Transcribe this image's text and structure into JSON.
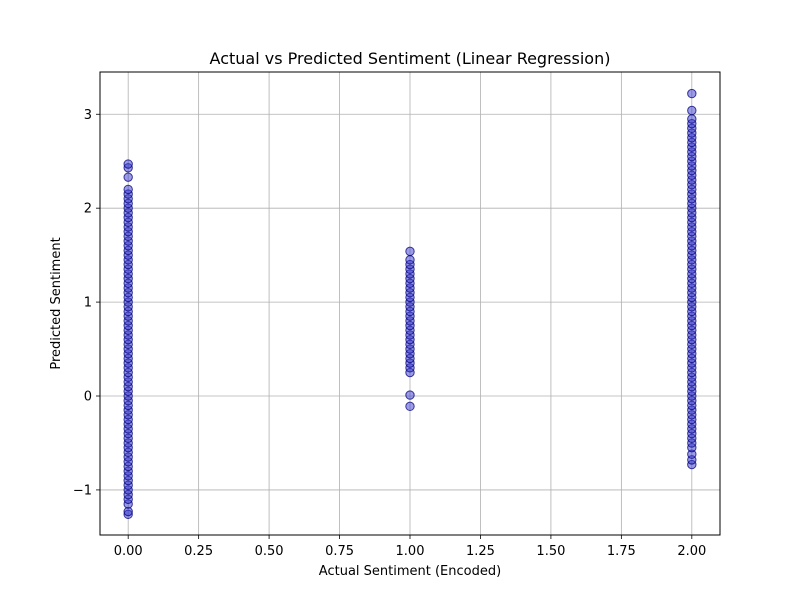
{
  "chart_data": {
    "type": "scatter",
    "title": "Actual vs Predicted Sentiment (Linear Regression)",
    "xlabel": "Actual Sentiment (Encoded)",
    "ylabel": "Predicted Sentiment",
    "xlim": [
      -0.1,
      2.1
    ],
    "ylim": [
      -1.48,
      3.45
    ],
    "xticks": [
      0.0,
      0.25,
      0.5,
      0.75,
      1.0,
      1.25,
      1.5,
      1.75,
      2.0
    ],
    "xtick_labels": [
      "0.00",
      "0.25",
      "0.50",
      "0.75",
      "1.00",
      "1.25",
      "1.50",
      "1.75",
      "2.00"
    ],
    "yticks": [
      -1,
      0,
      1,
      2,
      3
    ],
    "ytick_labels": [
      "−1",
      "0",
      "1",
      "2",
      "3"
    ],
    "grid": true,
    "marker_color": "#3a3ad0",
    "marker_edge_color": "#00007a",
    "marker_alpha": 0.5,
    "groups": [
      {
        "x": 0,
        "y_min": -1.26,
        "y_max": 2.47,
        "sample_y": [
          -1.26,
          -1.23,
          -1.15,
          -1.1,
          -1.05,
          -1.0,
          -0.95,
          -0.9,
          -0.85,
          -0.8,
          -0.75,
          -0.7,
          -0.65,
          -0.6,
          -0.55,
          -0.5,
          -0.45,
          -0.4,
          -0.35,
          -0.3,
          -0.25,
          -0.2,
          -0.15,
          -0.1,
          -0.05,
          0.0,
          0.05,
          0.1,
          0.15,
          0.2,
          0.25,
          0.3,
          0.35,
          0.4,
          0.45,
          0.5,
          0.55,
          0.6,
          0.65,
          0.7,
          0.75,
          0.8,
          0.85,
          0.9,
          0.95,
          1.0,
          1.05,
          1.1,
          1.15,
          1.2,
          1.25,
          1.3,
          1.35,
          1.4,
          1.45,
          1.5,
          1.55,
          1.6,
          1.65,
          1.7,
          1.75,
          1.8,
          1.85,
          1.9,
          1.95,
          2.0,
          2.05,
          2.1,
          2.15,
          2.2,
          2.33,
          2.43,
          2.47
        ]
      },
      {
        "x": 1,
        "y_min": -0.11,
        "y_max": 1.54,
        "sample_y": [
          -0.11,
          0.01,
          0.25,
          0.3,
          0.35,
          0.4,
          0.45,
          0.5,
          0.55,
          0.6,
          0.65,
          0.7,
          0.75,
          0.8,
          0.85,
          0.9,
          0.95,
          1.0,
          1.05,
          1.1,
          1.15,
          1.2,
          1.25,
          1.3,
          1.35,
          1.4,
          1.45,
          1.54
        ]
      },
      {
        "x": 2,
        "y_min": -0.73,
        "y_max": 3.22,
        "sample_y": [
          -0.73,
          -0.68,
          -0.62,
          -0.55,
          -0.5,
          -0.45,
          -0.4,
          -0.35,
          -0.3,
          -0.25,
          -0.2,
          -0.15,
          -0.1,
          -0.05,
          0.0,
          0.05,
          0.1,
          0.15,
          0.2,
          0.25,
          0.3,
          0.35,
          0.4,
          0.45,
          0.5,
          0.55,
          0.6,
          0.65,
          0.7,
          0.75,
          0.8,
          0.85,
          0.9,
          0.95,
          1.0,
          1.05,
          1.1,
          1.15,
          1.2,
          1.25,
          1.3,
          1.35,
          1.4,
          1.45,
          1.5,
          1.55,
          1.6,
          1.65,
          1.7,
          1.75,
          1.8,
          1.85,
          1.9,
          1.95,
          2.0,
          2.05,
          2.1,
          2.15,
          2.2,
          2.25,
          2.3,
          2.35,
          2.4,
          2.45,
          2.5,
          2.55,
          2.6,
          2.65,
          2.7,
          2.75,
          2.8,
          2.85,
          2.9,
          2.95,
          3.04,
          3.22
        ]
      }
    ]
  }
}
